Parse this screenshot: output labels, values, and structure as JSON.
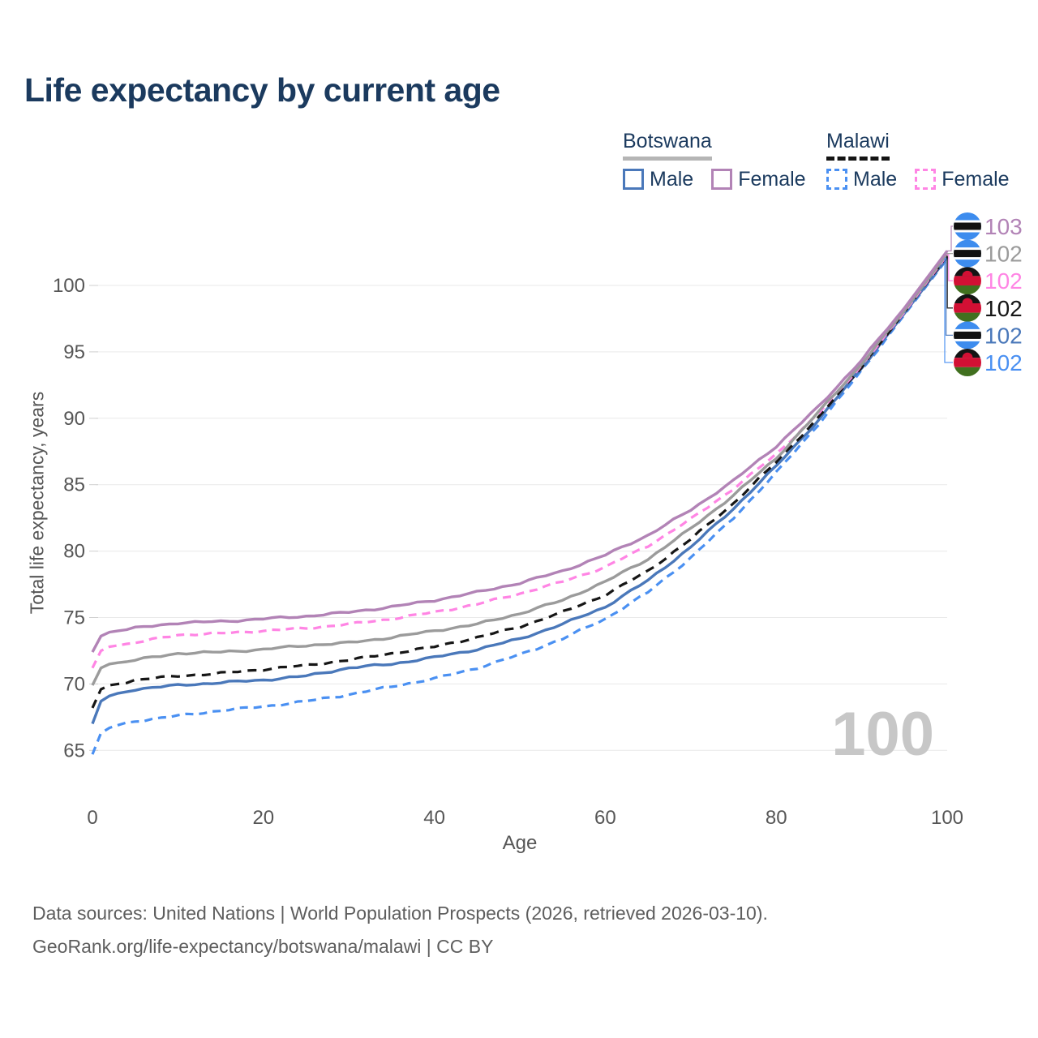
{
  "title": "Life expectancy by current age",
  "legend": {
    "groups": [
      {
        "country": "Botswana",
        "line_style": "solid",
        "underline_color": "#b5b5b5",
        "items": [
          {
            "label": "Male",
            "color": "#4a78ba",
            "dashed": false
          },
          {
            "label": "Female",
            "color": "#b283b6",
            "dashed": false
          }
        ]
      },
      {
        "country": "Malawi",
        "line_style": "dashed",
        "underline_color": "#141414",
        "items": [
          {
            "label": "Male",
            "color": "#4a90f2",
            "dashed": true
          },
          {
            "label": "Female",
            "color": "#ff85e4",
            "dashed": true
          }
        ]
      }
    ]
  },
  "chart_data": {
    "type": "line",
    "title": "Life expectancy by current age",
    "xlabel": "Age",
    "ylabel": "Total life expectancy, years",
    "xticks": [
      0,
      20,
      40,
      60,
      80,
      100
    ],
    "yticks": [
      65,
      70,
      75,
      80,
      85,
      90,
      95,
      100
    ],
    "xlim": [
      0,
      100
    ],
    "ylim": [
      63.5,
      103.5
    ],
    "grid": "horizontal",
    "ages": [
      0,
      1,
      2,
      3,
      5,
      10,
      15,
      20,
      25,
      30,
      35,
      40,
      45,
      50,
      55,
      60,
      65,
      70,
      75,
      80,
      85,
      90,
      95,
      100
    ],
    "series": [
      {
        "name": "Malawi Male",
        "country": "Malawi",
        "sex": "male",
        "color": "#4a90f2",
        "dash": "10 7",
        "values": [
          64.7,
          66.3,
          66.7,
          66.9,
          67.2,
          67.6,
          68.0,
          68.3,
          68.7,
          69.2,
          69.8,
          70.4,
          71.2,
          72.2,
          73.4,
          74.9,
          76.9,
          79.5,
          82.5,
          85.9,
          89.6,
          93.6,
          97.8,
          102.0
        ]
      },
      {
        "name": "Botswana Male",
        "country": "Botswana",
        "sex": "male",
        "color": "#4a78ba",
        "dash": null,
        "values": [
          67.0,
          68.7,
          69.1,
          69.3,
          69.6,
          69.9,
          70.1,
          70.3,
          70.6,
          71.2,
          71.5,
          72.0,
          72.6,
          73.4,
          74.5,
          75.8,
          77.8,
          80.3,
          83.2,
          86.4,
          89.9,
          93.8,
          97.9,
          102.1
        ]
      },
      {
        "name": "Malawi",
        "country": "Malawi",
        "sex": "both",
        "color": "#161616",
        "dash": "11 8",
        "values": [
          68.2,
          69.6,
          69.9,
          70.0,
          70.3,
          70.6,
          70.8,
          71.1,
          71.4,
          71.8,
          72.3,
          72.8,
          73.5,
          74.3,
          75.4,
          76.7,
          78.5,
          80.9,
          83.6,
          86.7,
          90.1,
          93.9,
          98.0,
          102.2
        ]
      },
      {
        "name": "Malawi Female",
        "country": "Malawi",
        "sex": "female",
        "color": "#ff85e4",
        "dash": "10 7",
        "values": [
          71.2,
          72.5,
          72.8,
          72.9,
          73.1,
          73.7,
          73.8,
          74.0,
          74.2,
          74.5,
          74.9,
          75.4,
          76.0,
          76.8,
          77.7,
          78.8,
          80.4,
          82.4,
          84.7,
          87.3,
          90.4,
          94.0,
          98.0,
          102.3
        ]
      },
      {
        "name": "Botswana",
        "country": "Botswana",
        "sex": "both",
        "color": "#9b9b9b",
        "dash": null,
        "values": [
          69.9,
          71.2,
          71.5,
          71.6,
          71.8,
          72.3,
          72.4,
          72.6,
          72.9,
          73.1,
          73.5,
          74.0,
          74.5,
          75.3,
          76.3,
          77.7,
          79.4,
          81.7,
          84.2,
          87.0,
          90.5,
          94.1,
          98.1,
          102.4
        ]
      },
      {
        "name": "Botswana Female",
        "country": "Botswana",
        "sex": "female",
        "color": "#b283b6",
        "dash": null,
        "values": [
          72.4,
          73.6,
          73.9,
          74.0,
          74.2,
          74.6,
          74.7,
          74.9,
          75.1,
          75.4,
          75.8,
          76.3,
          76.9,
          77.6,
          78.5,
          79.7,
          81.2,
          83.1,
          85.3,
          87.9,
          90.9,
          94.4,
          98.3,
          102.6
        ]
      }
    ]
  },
  "end_labels": [
    {
      "flag": "botswana",
      "value": "103",
      "series": "Botswana Female",
      "color": "#b283b6"
    },
    {
      "flag": "botswana",
      "value": "102",
      "series": "Botswana",
      "color": "#9b9b9b"
    },
    {
      "flag": "malawi",
      "value": "102",
      "series": "Malawi Female",
      "color": "#ff85e4"
    },
    {
      "flag": "malawi",
      "value": "102",
      "series": "Malawi",
      "color": "#161616"
    },
    {
      "flag": "botswana",
      "value": "102",
      "series": "Botswana Male",
      "color": "#4a78ba"
    },
    {
      "flag": "malawi",
      "value": "102",
      "series": "Malawi Male",
      "color": "#4a90f2"
    }
  ],
  "flag_colors": {
    "botswana": {
      "blue": "#3d8cee",
      "black": "#111111",
      "white": "#ffffff"
    },
    "malawi": {
      "black": "#141414",
      "red": "#d21034",
      "green": "#41701f"
    }
  },
  "current_age_watermark": "100",
  "footer": {
    "line1": "Data sources: United Nations | World Population Prospects (2026, retrieved 2026-03-10).",
    "line2": "GeoRank.org/life-expectancy/botswana/malawi | CC BY"
  }
}
